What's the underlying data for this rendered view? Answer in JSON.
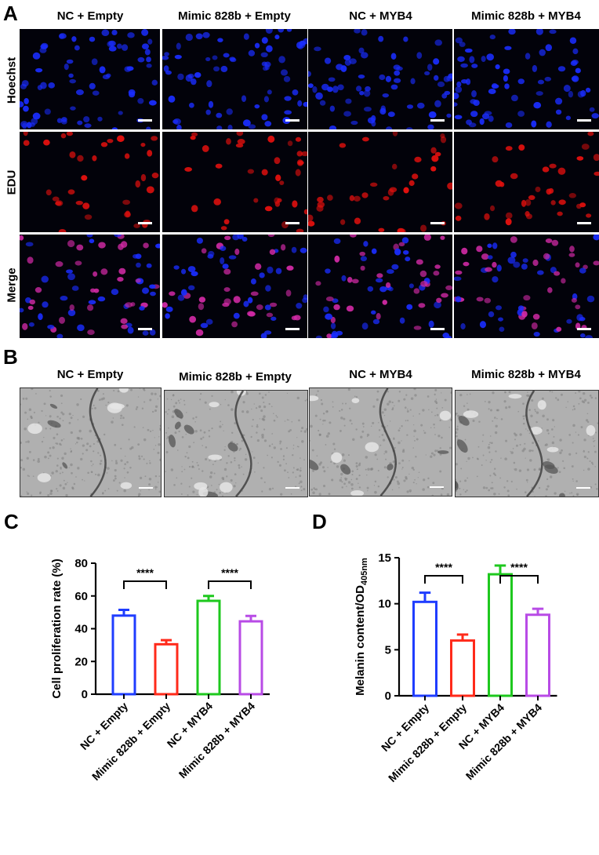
{
  "panels": {
    "a": {
      "letter": "A",
      "columns": [
        "NC + Empty",
        "Mimic 828b + Empty",
        "NC + MYB4",
        "Mimic 828b + MYB4"
      ],
      "rows": [
        "Hoechst",
        "EDU",
        "Merge"
      ]
    },
    "b": {
      "letter": "B",
      "columns": [
        "NC + Empty",
        "Mimic 828b + Empty",
        "NC + MYB4",
        "Mimic 828b + MYB4"
      ]
    },
    "c": {
      "letter": "C"
    },
    "d": {
      "letter": "D"
    }
  },
  "colors": {
    "blue": "#1f3dff",
    "red": "#ff2a1a",
    "green": "#1ec81e",
    "purple": "#b84be6",
    "hoechst": "#1a2dff",
    "edu": "#e0100e",
    "merge_pink": "#d22aa6"
  },
  "chart_data": [
    {
      "type": "bar",
      "ylabel": "Cell proliferation rate  (%)",
      "categories": [
        "NC + Empty",
        "Mimic 828b + Empty",
        "NC + MYB4",
        "Mimic 828b + MYB4"
      ],
      "values": [
        48,
        30.5,
        57,
        44.5
      ],
      "errors": [
        3.5,
        2.5,
        3,
        3.3
      ],
      "bar_colors": [
        "#1f3dff",
        "#ff2a1a",
        "#1ec81e",
        "#b84be6"
      ],
      "ylim": [
        0,
        80
      ],
      "yticks": [
        0,
        20,
        40,
        60,
        80
      ],
      "significance": [
        {
          "from": 0,
          "to": 1,
          "label": "****"
        },
        {
          "from": 2,
          "to": 3,
          "label": "****"
        }
      ]
    },
    {
      "type": "bar",
      "ylabel": "Melanin content/OD",
      "ylabel_sub": "405nm",
      "categories": [
        "NC + Empty",
        "Mimic 828b + Empty",
        "NC + MYB4",
        "Mimic 828b + MYB4"
      ],
      "values": [
        10.2,
        6.0,
        13.2,
        8.8
      ],
      "errors": [
        1.0,
        0.65,
        0.95,
        0.65
      ],
      "bar_colors": [
        "#1f3dff",
        "#ff2a1a",
        "#1ec81e",
        "#b84be6"
      ],
      "ylim": [
        0,
        15
      ],
      "yticks": [
        0,
        5,
        10,
        15
      ],
      "significance": [
        {
          "from": 0,
          "to": 1,
          "label": "****"
        },
        {
          "from": 2,
          "to": 3,
          "label": "****"
        }
      ]
    }
  ]
}
